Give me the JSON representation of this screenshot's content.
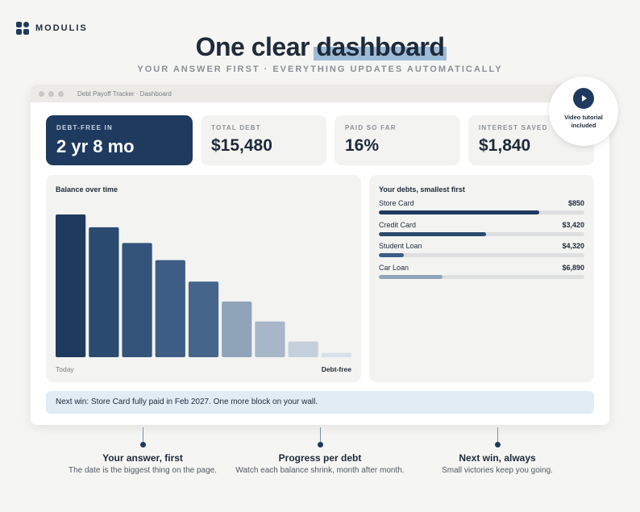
{
  "brand": {
    "name": "MODULIS"
  },
  "hero": {
    "title_before": "One clear ",
    "title_highlight": "dashboard",
    "subtitle": "YOUR ANSWER FIRST · EVERYTHING UPDATES AUTOMATICALLY"
  },
  "window": {
    "title": "Debt Payoff Tracker · Dashboard"
  },
  "kpis": [
    {
      "label": "DEBT-FREE IN",
      "value": "2 yr 8 mo"
    },
    {
      "label": "TOTAL DEBT",
      "value": "$15,480"
    },
    {
      "label": "PAID SO FAR",
      "value": "16%"
    },
    {
      "label": "INTEREST SAVED",
      "value": "$1,840"
    }
  ],
  "balance": {
    "title": "Balance over time",
    "start_label": "Today",
    "end_label": "Debt-free"
  },
  "chart_data": {
    "type": "bar",
    "title": "Balance over time",
    "xlabel": "",
    "ylabel": "",
    "values": [
      100,
      91,
      80,
      68,
      53,
      39,
      25,
      11,
      3
    ],
    "ylim": [
      0,
      100
    ],
    "colors": [
      "#1f3a5f",
      "#2b4a70",
      "#33537a",
      "#3d5d84",
      "#46658b",
      "#8fa3b9",
      "#a7b7c9",
      "#c4d0dc",
      "#d7e0e9"
    ]
  },
  "debts": {
    "title": "Your debts, smallest first",
    "items": [
      {
        "name": "Store Card",
        "amount": "$850",
        "progress": 0.78,
        "color": "#1f3a5f"
      },
      {
        "name": "Credit Card",
        "amount": "$3,420",
        "progress": 0.52,
        "color": "#2b4a70"
      },
      {
        "name": "Student Loan",
        "amount": "$4,320",
        "progress": 0.12,
        "color": "#3d5d84"
      },
      {
        "name": "Car Loan",
        "amount": "$6,890",
        "progress": 0.31,
        "color": "#8fa3b9"
      }
    ]
  },
  "banner": {
    "text": "Next win: Store Card fully paid in Feb 2027. One more block on your wall."
  },
  "video_badge": {
    "line1": "Video tutorial",
    "line2": "included",
    "icon": "play-icon"
  },
  "callouts": [
    {
      "title": "Your answer, first",
      "desc": "The date is the biggest thing on the page."
    },
    {
      "title": "Progress per debt",
      "desc": "Watch each balance shrink, month after month."
    },
    {
      "title": "Next win, always",
      "desc": "Small victories keep you going."
    }
  ]
}
